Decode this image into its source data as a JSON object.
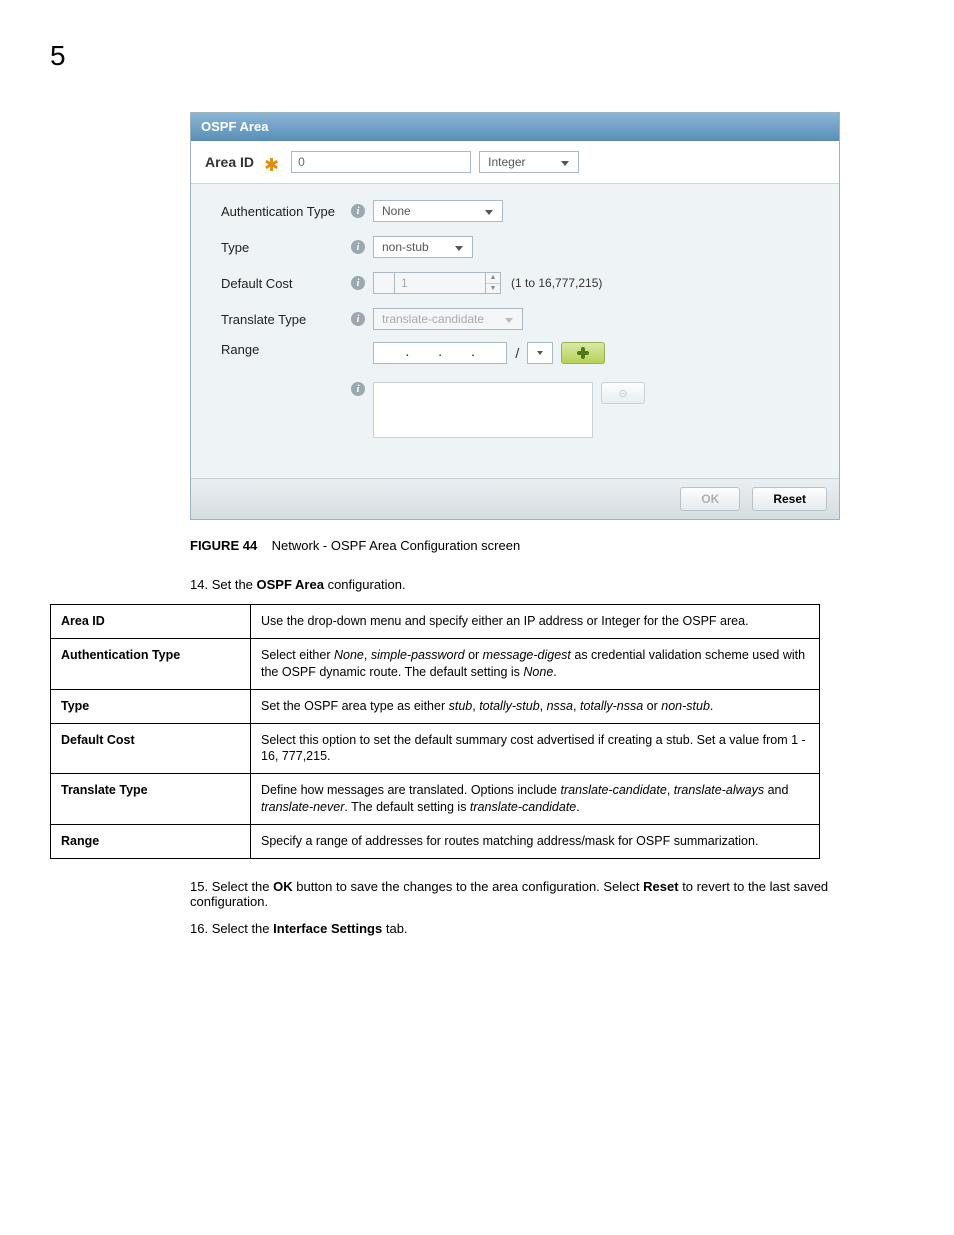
{
  "page": {
    "number": "5"
  },
  "panel": {
    "title": "OSPF Area",
    "area_id_label": "Area ID",
    "area_id_value": "0",
    "area_id_type": "Integer",
    "auth_label": "Authentication Type",
    "auth_value": "None",
    "type_label": "Type",
    "type_value": "non-stub",
    "cost_label": "Default Cost",
    "cost_value": "1",
    "cost_hint": "(1 to 16,777,215)",
    "trans_label": "Translate Type",
    "trans_value": "translate-candidate",
    "range_label": "Range",
    "ok": "OK",
    "reset": "Reset",
    "colors": {
      "header_grad_top": "#8ab5d6",
      "header_grad_bot": "#5a90b8",
      "body_bg": "#eef3f6",
      "border": "#9cb4c0"
    }
  },
  "caption": {
    "fig": "FIGURE 44",
    "text": "Network - OSPF Area Configuration screen"
  },
  "steps": {
    "s14_num": "14.",
    "s14_a": "Set the ",
    "s14_b": "OSPF Area",
    "s14_c": " configuration.",
    "s15_num": "15.",
    "s15_a": "Select the ",
    "s15_b": "OK",
    "s15_c": " button to save the changes to the area configuration. Select ",
    "s15_d": "Reset",
    "s15_e": " to revert to the last saved configuration.",
    "s16_num": "16.",
    "s16_a": "Select the ",
    "s16_b": "Interface Settings",
    "s16_c": " tab."
  },
  "table": {
    "rows": [
      {
        "k": "Area ID",
        "v": "Use the drop-down menu and specify either an IP address or Integer for the OSPF area."
      },
      {
        "k": "Authentication Type",
        "v": "Select either <em>None</em>, <em>simple-password</em> or <em>message-digest</em> as credential validation scheme used with the OSPF dynamic route. The default setting is <em>None</em>."
      },
      {
        "k": "Type",
        "v": "Set the OSPF area type as either <em>stub</em>, <em>totally-stub</em>, <em>nssa</em>, <em>totally-nssa</em> or <em>non-stub</em>."
      },
      {
        "k": "Default Cost",
        "v": "Select this option to set the default summary cost advertised if creating a stub. Set a value from 1 - 16, 777,215."
      },
      {
        "k": "Translate Type",
        "v": "Define how messages are translated. Options include <em>translate-candidate</em>, <em>translate-always</em> and <em>translate-never</em>. The default setting is <em>translate-candidate</em>."
      },
      {
        "k": "Range",
        "v": "Specify a range of addresses for routes matching address/mask for OSPF summarization."
      }
    ]
  }
}
